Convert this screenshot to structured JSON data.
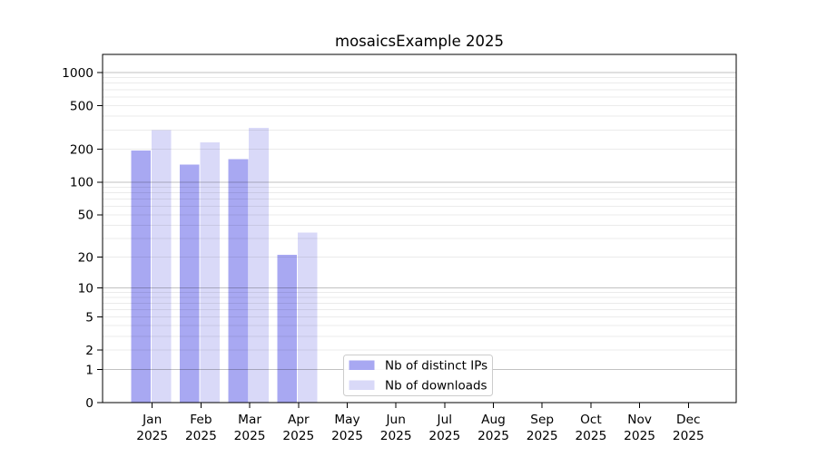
{
  "figure": {
    "title": "mosaicsExample 2025"
  },
  "chart_data": {
    "type": "bar",
    "title": "mosaicsExample 2025",
    "categories": [
      "Jan",
      "Feb",
      "Mar",
      "Apr",
      "May",
      "Jun",
      "Jul",
      "Aug",
      "Sep",
      "Oct",
      "Nov",
      "Dec"
    ],
    "year_label": "2025",
    "series": [
      {
        "name": "Nb of distinct IPs",
        "color": "#a8a8f2",
        "values": [
          195,
          145,
          162,
          21,
          null,
          null,
          null,
          null,
          null,
          null,
          null,
          null
        ]
      },
      {
        "name": "Nb of downloads",
        "color": "#d9d9f8",
        "values": [
          298,
          232,
          314,
          34,
          null,
          null,
          null,
          null,
          null,
          null,
          null,
          null
        ]
      }
    ],
    "xlabel": "",
    "ylabel": "",
    "yscale": "log1p",
    "ytick_values": [
      0,
      1,
      2,
      5,
      10,
      20,
      50,
      100,
      200,
      500,
      1000
    ],
    "ytick_labels": [
      "0",
      "1",
      "2",
      "5",
      "10",
      "20",
      "50",
      "100",
      "200",
      "500",
      "1000"
    ],
    "ylim": [
      0,
      1460
    ],
    "grid": true,
    "grid_major_at": [
      1,
      10,
      100,
      1000
    ],
    "legend": {
      "position": "lower center",
      "items": [
        "Nb of distinct IPs",
        "Nb of downloads"
      ]
    },
    "colors": {
      "bar_distinct_ips": "#a8a8f2",
      "bar_downloads": "#d9d9f8",
      "grid_major": "#c4c4c4",
      "grid_minor": "#ebebeb",
      "spine": "#000000",
      "legend_border": "#cccccc",
      "background": "#ffffff"
    }
  }
}
